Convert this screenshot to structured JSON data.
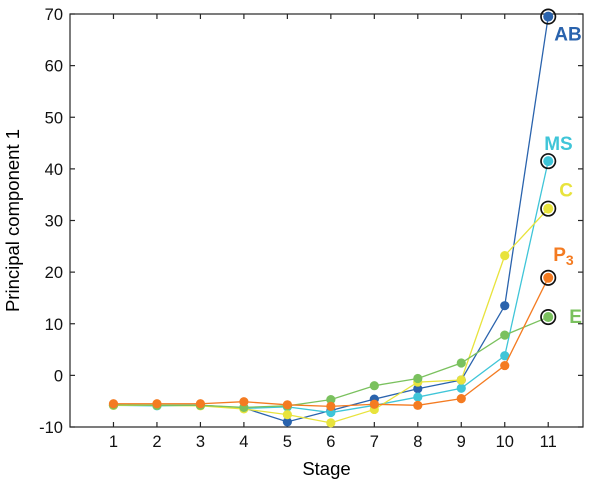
{
  "figure": {
    "background": "#ffffff",
    "axis_color": "#262626"
  },
  "chart_data": {
    "type": "line",
    "title": "",
    "xlabel": "Stage",
    "ylabel": "Principal component 1",
    "x": [
      1,
      2,
      3,
      4,
      5,
      6,
      7,
      8,
      9,
      10,
      11
    ],
    "x_ticks": [
      1,
      2,
      3,
      4,
      5,
      6,
      7,
      8,
      9,
      10,
      11
    ],
    "y_ticks": [
      -10,
      0,
      10,
      20,
      30,
      40,
      50,
      60,
      70
    ],
    "xlim": [
      0,
      11.8
    ],
    "ylim": [
      -10,
      70
    ],
    "grid": false,
    "legend_position": "end-of-line-labels",
    "marker": "filled-circle",
    "end_marker": "black-ring-circle",
    "series": [
      {
        "name": "AB",
        "label": "AB",
        "label_sub": "",
        "color": "#2A63AD",
        "values": [
          -5.8,
          -5.8,
          -5.8,
          -6.3,
          -9.0,
          -6.8,
          -4.6,
          -2.6,
          -0.9,
          13.5,
          69.5
        ],
        "label_dx": 6,
        "label_dy": 24
      },
      {
        "name": "MS",
        "label": "MS",
        "label_sub": "",
        "color": "#3FC5D8",
        "values": [
          -5.8,
          -5.9,
          -5.8,
          -6.4,
          -6.1,
          -7.2,
          -5.8,
          -4.2,
          -2.5,
          3.8,
          41.5
        ],
        "label_dx": -4,
        "label_dy": -11
      },
      {
        "name": "C",
        "label": "C",
        "label_sub": "",
        "color": "#E8E33C",
        "values": [
          -5.8,
          -5.8,
          -5.9,
          -6.5,
          -7.6,
          -9.2,
          -6.6,
          -1.3,
          -0.9,
          23.2,
          32.3
        ],
        "label_dx": 11,
        "label_dy": -12
      },
      {
        "name": "E",
        "label": "E",
        "label_sub": "",
        "color": "#7AC15E",
        "values": [
          -5.7,
          -5.8,
          -5.8,
          -6.2,
          -5.9,
          -4.7,
          -2.0,
          -0.6,
          2.4,
          7.8,
          11.3
        ],
        "label_dx": 21,
        "label_dy": 6
      },
      {
        "name": "P3",
        "label": "P",
        "label_sub": "3",
        "color": "#F47B21",
        "values": [
          -5.5,
          -5.5,
          -5.5,
          -5.1,
          -5.7,
          -6.0,
          -5.6,
          -5.8,
          -4.5,
          1.9,
          18.9
        ],
        "label_dx": 5,
        "label_dy": -17
      }
    ]
  }
}
